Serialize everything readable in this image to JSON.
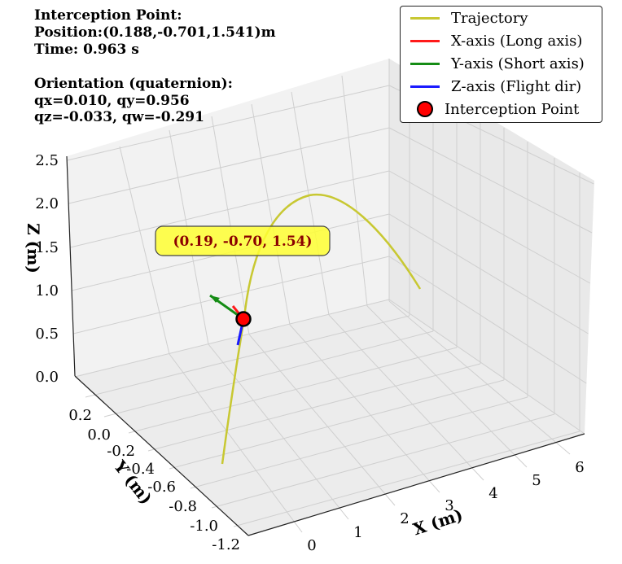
{
  "info": {
    "title": "Interception Point:",
    "position_label": "Position:(0.188,-0.701,1.541)m",
    "time_label": "Time: 0.963 s",
    "orientation_title": "Orientation (quaternion):",
    "q_line1": "qx=0.010, qy=0.956",
    "q_line2": "qz=-0.033, qw=-0.291"
  },
  "annotation": {
    "text": "(0.19, -0.70, 1.54)",
    "bg_color": "#ffff33",
    "text_color": "#8b0000"
  },
  "legend": {
    "placement": "upper-right",
    "items": [
      {
        "label": "Trajectory",
        "color": "#c8c832",
        "kind": "line"
      },
      {
        "label": "X-axis (Long axis)",
        "color": "#ff1a1a",
        "kind": "line"
      },
      {
        "label": "Y-axis (Short axis)",
        "color": "#158c15",
        "kind": "line"
      },
      {
        "label": "Z-axis (Flight dir)",
        "color": "#1a1aff",
        "kind": "line"
      },
      {
        "label": "Interception Point",
        "color": "#ff0000",
        "kind": "marker"
      }
    ]
  },
  "chart_data": {
    "type": "line3d",
    "xlabel": "X (m)",
    "ylabel": "Y (m)",
    "zlabel": "Z (m)",
    "x_ticks": [
      "0",
      "1",
      "2",
      "3",
      "4",
      "5",
      "6"
    ],
    "y_ticks": [
      "0.2",
      "0.0",
      "-0.2",
      "-0.4",
      "-0.6",
      "-0.8",
      "-1.0",
      "-1.2"
    ],
    "z_ticks": [
      "0.0",
      "0.5",
      "1.0",
      "1.5",
      "2.0",
      "2.5"
    ],
    "xlim": [
      -0.5,
      6.5
    ],
    "ylim": [
      -1.25,
      0.35
    ],
    "zlim": [
      0,
      2.8
    ],
    "grid": true,
    "trajectory": {
      "name": "Trajectory",
      "color": "#c8c832",
      "x": [
        -0.4,
        0.0,
        0.5,
        1.0,
        1.5,
        2.0,
        2.5,
        3.0,
        3.5,
        4.0
      ],
      "y": [
        -0.1,
        -0.35,
        -0.7,
        -0.95,
        -0.9,
        -0.75,
        -0.55,
        -0.35,
        -0.15,
        0.05
      ],
      "z": [
        0.2,
        1.0,
        1.54,
        2.0,
        2.3,
        2.45,
        2.4,
        2.2,
        1.85,
        1.4
      ]
    },
    "interception_point": {
      "name": "Interception Point",
      "x": 0.188,
      "y": -0.701,
      "z": 1.541,
      "color": "#ff0000"
    },
    "orientation_axes": [
      {
        "name": "X-axis (Long axis)",
        "color": "#ff1a1a",
        "dx": -0.1,
        "dy": 0.25,
        "dz": 0.1
      },
      {
        "name": "Y-axis (Short axis)",
        "color": "#158c15",
        "dx": -0.6,
        "dy": 0.3,
        "dz": 0.35
      },
      {
        "name": "Z-axis (Flight dir)",
        "color": "#1a1aff",
        "dx": 0.05,
        "dy": -0.1,
        "dz": -0.35
      }
    ]
  }
}
